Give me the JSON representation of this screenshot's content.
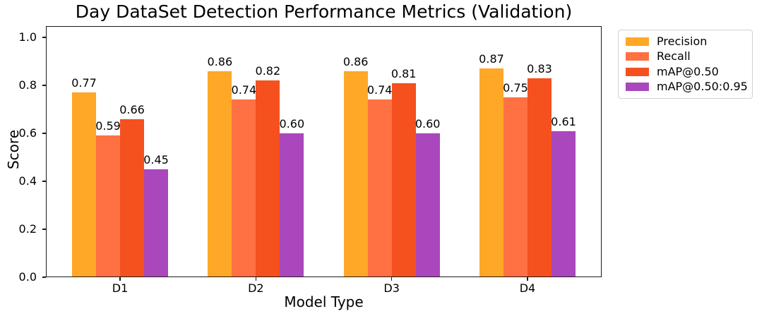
{
  "chart_data": {
    "type": "bar",
    "title": "Day DataSet Detection Performance Metrics (Validation)",
    "categories": [
      "D1",
      "D2",
      "D3",
      "D4"
    ],
    "series": [
      {
        "name": "Precision",
        "color": "#FFA726",
        "values": [
          0.77,
          0.86,
          0.86,
          0.87
        ]
      },
      {
        "name": "Recall",
        "color": "#FF7043",
        "values": [
          0.59,
          0.74,
          0.74,
          0.75
        ]
      },
      {
        "name": "mAP@0.50",
        "color": "#F4511E",
        "values": [
          0.66,
          0.82,
          0.81,
          0.83
        ]
      },
      {
        "name": "mAP@0.50:0.95",
        "color": "#AB47BC",
        "values": [
          0.45,
          0.6,
          0.6,
          0.61
        ]
      }
    ],
    "xlabel": "Model Type",
    "ylabel": "Score",
    "ylim": [
      0,
      1.047
    ],
    "yticks": [
      0.0,
      0.2,
      0.4,
      0.6,
      0.8,
      1.0
    ],
    "ytick_labels": [
      "0.0",
      "0.2",
      "0.4",
      "0.6",
      "0.8",
      "1.0"
    ],
    "value_labels_shown": true,
    "value_label_decimals": 2,
    "grid": false,
    "legend_position": "outside-top-right",
    "background_color": "#ffffff",
    "spine_color": "#1a1a1a"
  }
}
